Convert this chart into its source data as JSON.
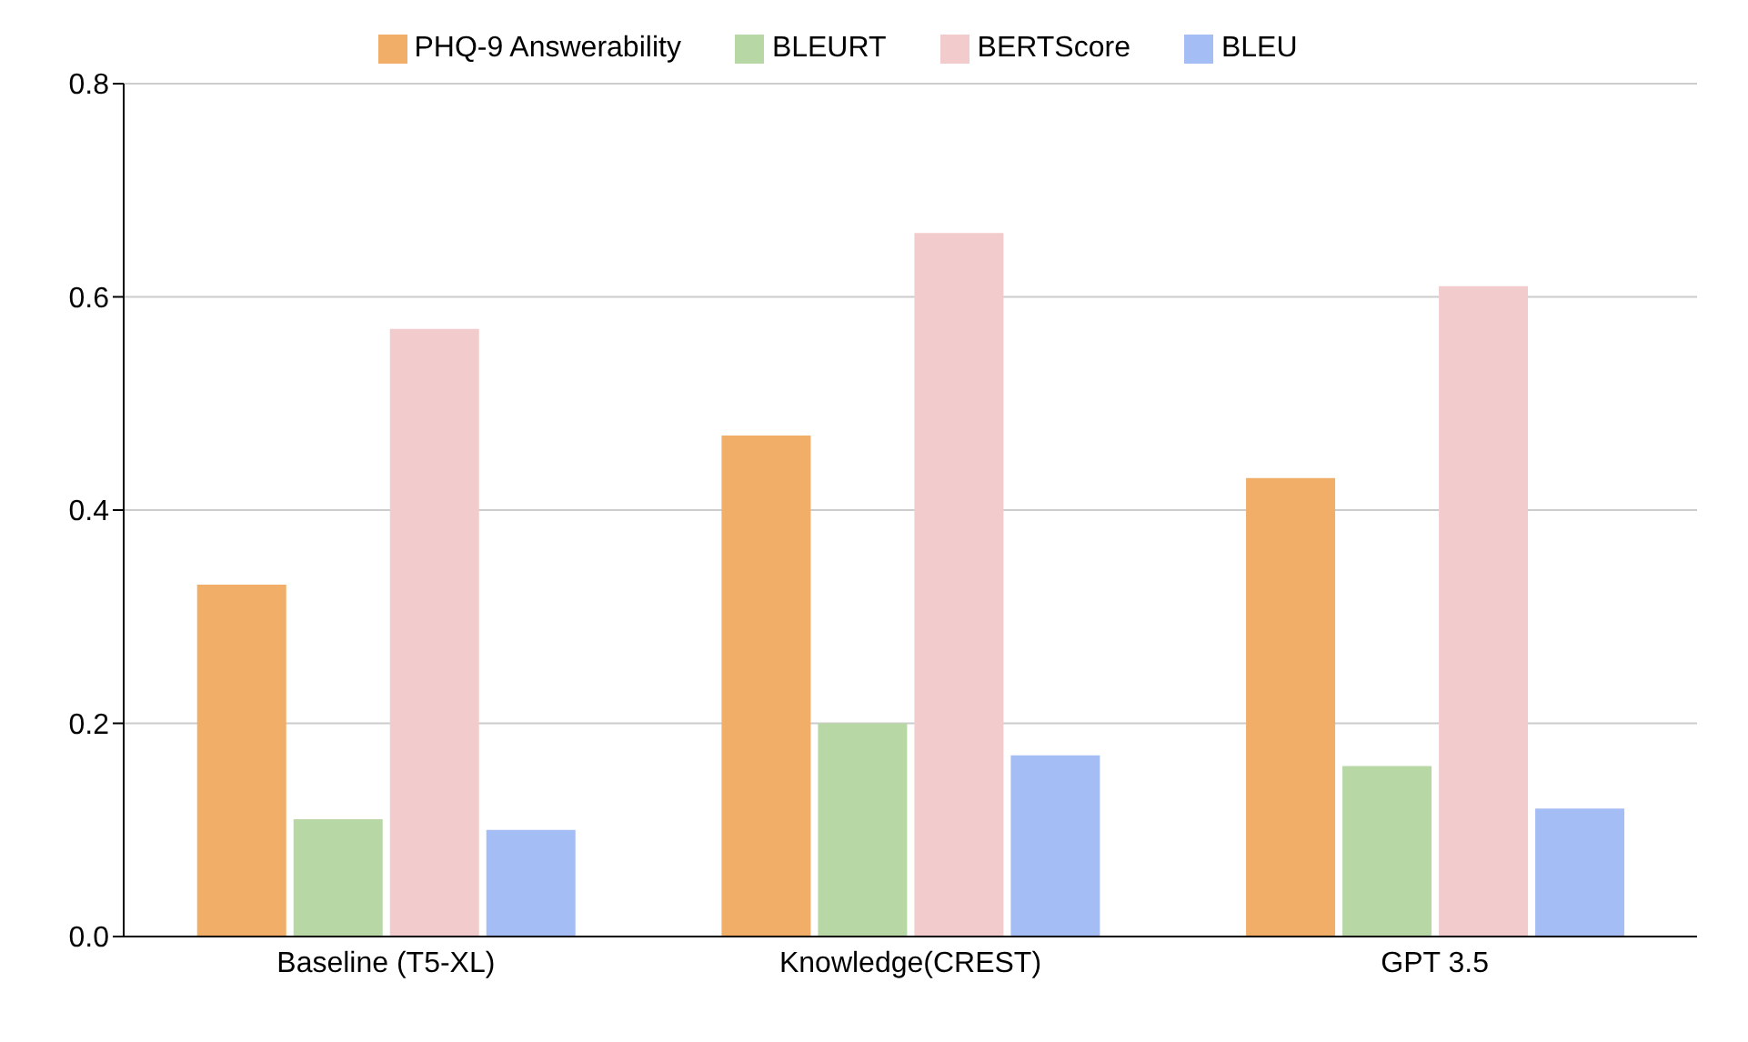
{
  "chart_data": {
    "type": "bar",
    "categories": [
      "Baseline (T5-XL)",
      "Knowledge(CREST)",
      "GPT 3.5"
    ],
    "series": [
      {
        "name": "PHQ-9 Answerability",
        "color": "#f0ae69",
        "values": [
          0.33,
          0.47,
          0.43
        ]
      },
      {
        "name": "BLEURT",
        "color": "#b7d7a5",
        "values": [
          0.11,
          0.2,
          0.16
        ]
      },
      {
        "name": "BERTScore",
        "color": "#f2cccd",
        "values": [
          0.57,
          0.66,
          0.61
        ]
      },
      {
        "name": "BLEU",
        "color": "#a5bdf5",
        "values": [
          0.1,
          0.17,
          0.12
        ]
      }
    ],
    "ylim": [
      0,
      0.8
    ],
    "yticks": [
      {
        "value": 0,
        "label": "0.0"
      },
      0.2,
      0.4,
      0.6,
      0.8
    ],
    "grid": "y",
    "legend": "top"
  }
}
